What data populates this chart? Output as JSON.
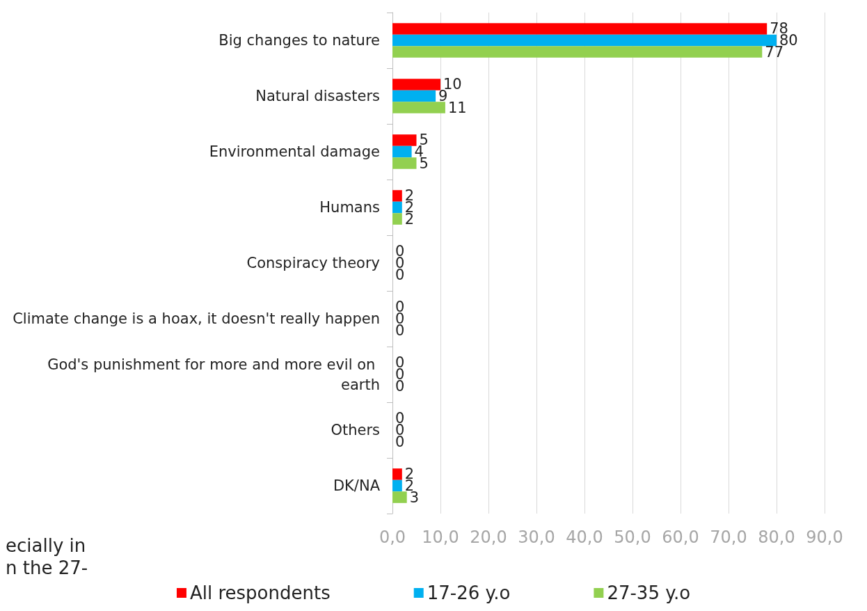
{
  "chart_data": {
    "type": "bar",
    "orientation": "horizontal",
    "categories": [
      "Big changes to nature",
      "Natural disasters",
      "Environmental damage",
      "Humans",
      "Conspiracy theory",
      "Climate change is a hoax, it doesn't really happen",
      "God's punishment for more and more evil on earth",
      "Others",
      "DK/NA"
    ],
    "series": [
      {
        "name": "All respondents",
        "color": "#ff0000",
        "values": [
          78,
          10,
          5,
          2,
          0,
          0,
          0,
          0,
          2
        ]
      },
      {
        "name": "17-26 y.o",
        "color": "#00b0f0",
        "values": [
          80,
          9,
          4,
          2,
          0,
          0,
          0,
          0,
          2
        ]
      },
      {
        "name": "27-35 y.o",
        "color": "#92d050",
        "values": [
          77,
          11,
          5,
          2,
          0,
          0,
          0,
          0,
          3
        ]
      }
    ],
    "xlim": [
      0,
      90
    ],
    "xticks": [
      {
        "value": 0,
        "label": "0,0"
      },
      {
        "value": 10,
        "label": "10,0"
      },
      {
        "value": 20,
        "label": "20,0"
      },
      {
        "value": 30,
        "label": "30,0"
      },
      {
        "value": 40,
        "label": "40,0"
      },
      {
        "value": 50,
        "label": "50,0"
      },
      {
        "value": 60,
        "label": "60,0"
      },
      {
        "value": 70,
        "label": "70,0"
      },
      {
        "value": 80,
        "label": "80,0"
      },
      {
        "value": 90,
        "label": "90,0"
      }
    ],
    "data_labels": true,
    "grid": "x",
    "legend": "bottom",
    "annotations": [
      "ecially in\nn the 27-"
    ]
  }
}
